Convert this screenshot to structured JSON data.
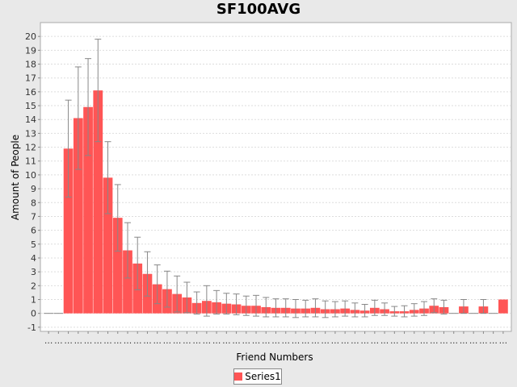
{
  "chart_data": {
    "type": "bar",
    "title": "SF100AVG",
    "xlabel": "Friend Numbers",
    "ylabel": "Amount of People",
    "ylim": [
      -1.3,
      21
    ],
    "y_ticks": [
      -1,
      0,
      1,
      2,
      3,
      4,
      5,
      6,
      7,
      8,
      9,
      10,
      11,
      12,
      13,
      14,
      15,
      16,
      17,
      18,
      19,
      20
    ],
    "x_tick_label": "...",
    "bar_color": "#ff5555",
    "error_bar_color": "#888888",
    "grid": true,
    "legend_position": "bottom-center",
    "series": [
      {
        "name": "Series1",
        "values": [
          0,
          0,
          11.9,
          14.1,
          14.9,
          16.1,
          9.8,
          6.9,
          4.55,
          3.6,
          2.85,
          2.1,
          1.75,
          1.4,
          1.15,
          0.75,
          0.9,
          0.8,
          0.7,
          0.65,
          0.55,
          0.55,
          0.45,
          0.4,
          0.4,
          0.35,
          0.35,
          0.4,
          0.3,
          0.3,
          0.35,
          0.25,
          0.2,
          0.4,
          0.3,
          0.15,
          0.15,
          0.25,
          0.35,
          0.55,
          0.45,
          0,
          0.5,
          0,
          0.5,
          0,
          1.0
        ],
        "errors": [
          0,
          0,
          3.5,
          3.7,
          3.5,
          3.7,
          2.6,
          2.4,
          2.0,
          1.9,
          1.6,
          1.4,
          1.3,
          1.3,
          1.1,
          0.8,
          1.1,
          0.85,
          0.75,
          0.75,
          0.7,
          0.75,
          0.7,
          0.65,
          0.65,
          0.65,
          0.6,
          0.65,
          0.6,
          0.55,
          0.55,
          0.5,
          0.45,
          0.55,
          0.45,
          0.35,
          0.4,
          0.45,
          0.5,
          0.5,
          0.5,
          0,
          0.5,
          0,
          0.5,
          0,
          0
        ]
      }
    ]
  }
}
